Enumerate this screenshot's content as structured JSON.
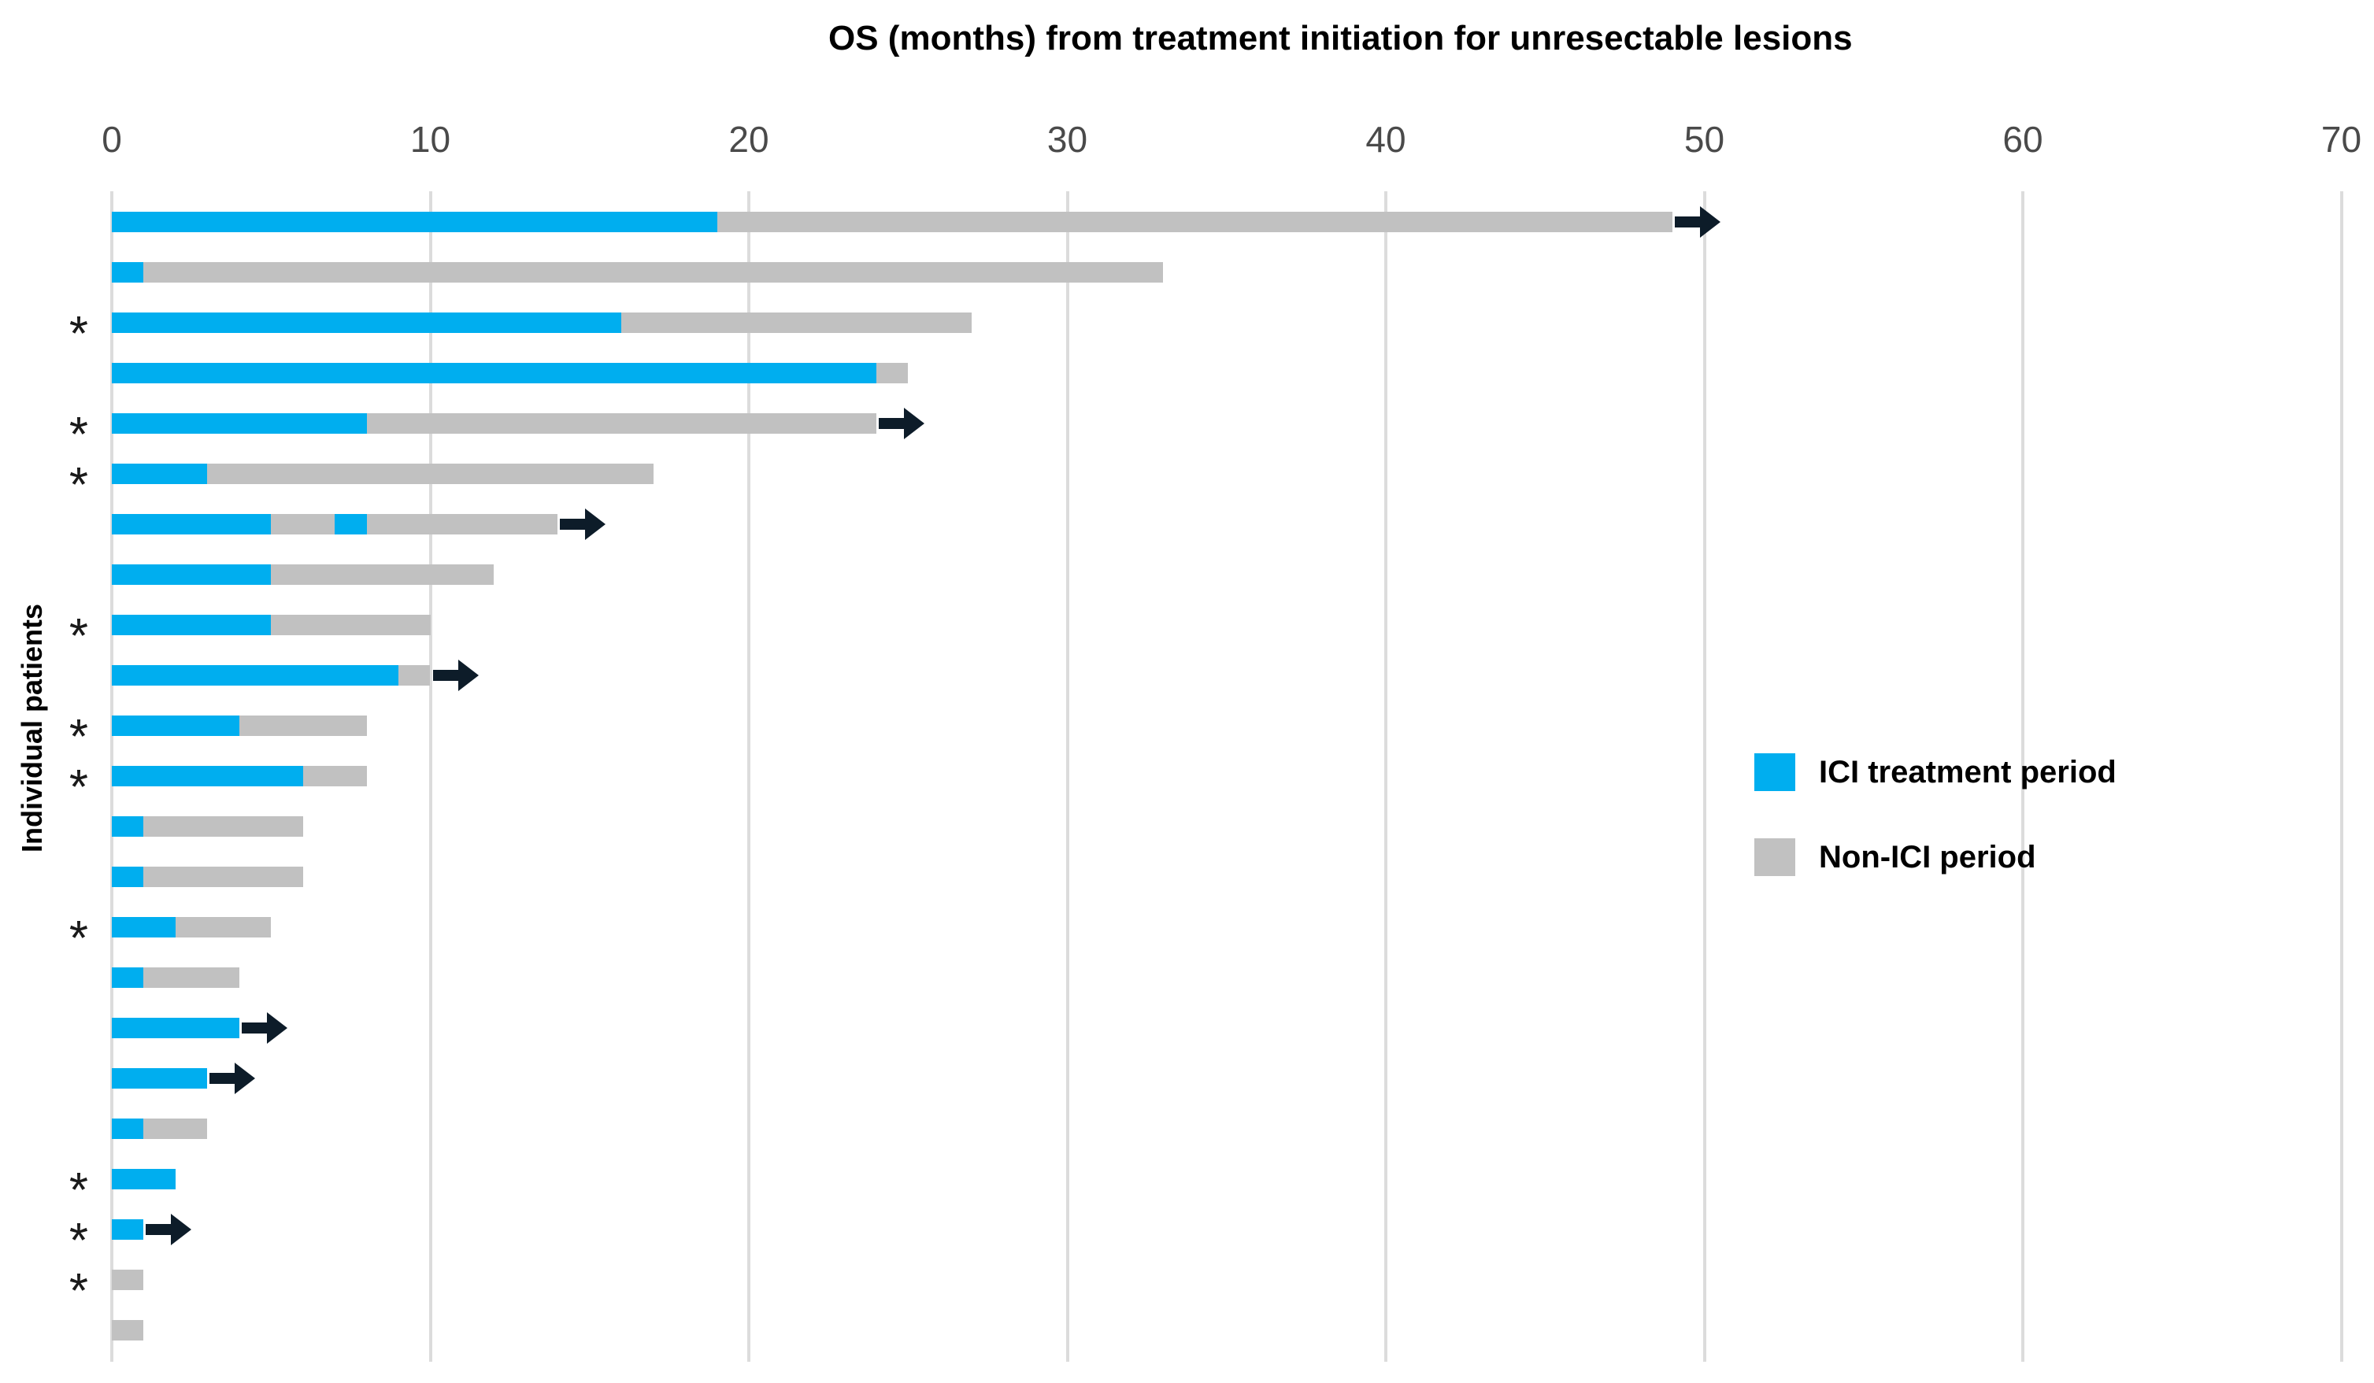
{
  "title": "OS (months) from treatment initiation for unresectable lesions",
  "y_axis_label": "Individual patients",
  "x_axis": {
    "tick_labels": [
      "0",
      "10",
      "20",
      "30",
      "40",
      "50",
      "60",
      "70"
    ]
  },
  "legend": {
    "items": [
      {
        "label": "ICI treatment period",
        "color": "#00aeef"
      },
      {
        "label": "Non-ICI period",
        "color": "#c1c1c1"
      }
    ]
  },
  "colors": {
    "ici": "#00aeef",
    "non_ici": "#c1c1c1",
    "arrow": "#0d1c29",
    "gridline": "#dcdcdc",
    "tick_text": "#4a4a4a"
  },
  "chart_data": {
    "type": "bar",
    "subtype": "swimmer-plot",
    "orientation": "horizontal",
    "title": "OS (months) from treatment initiation for unresectable lesions",
    "ylabel": "Individual patients",
    "xlim": [
      0,
      70
    ],
    "xticks": [
      0,
      10,
      20,
      30,
      40,
      50,
      60,
      70
    ],
    "grid": true,
    "legend_position": "right",
    "series_names": [
      "ICI treatment period",
      "Non-ICI period"
    ],
    "patients": [
      {
        "asterisk": false,
        "arrow": true,
        "segments": [
          {
            "type": "ici",
            "from": 0,
            "to": 19
          },
          {
            "type": "non_ici",
            "from": 19,
            "to": 49
          }
        ]
      },
      {
        "asterisk": false,
        "arrow": false,
        "segments": [
          {
            "type": "ici",
            "from": 0,
            "to": 1
          },
          {
            "type": "non_ici",
            "from": 1,
            "to": 33
          }
        ]
      },
      {
        "asterisk": true,
        "arrow": false,
        "segments": [
          {
            "type": "ici",
            "from": 0,
            "to": 16
          },
          {
            "type": "non_ici",
            "from": 16,
            "to": 27
          }
        ]
      },
      {
        "asterisk": false,
        "arrow": false,
        "segments": [
          {
            "type": "ici",
            "from": 0,
            "to": 24
          },
          {
            "type": "non_ici",
            "from": 24,
            "to": 25
          }
        ]
      },
      {
        "asterisk": true,
        "arrow": true,
        "segments": [
          {
            "type": "ici",
            "from": 0,
            "to": 8
          },
          {
            "type": "non_ici",
            "from": 8,
            "to": 24
          }
        ]
      },
      {
        "asterisk": true,
        "arrow": false,
        "segments": [
          {
            "type": "ici",
            "from": 0,
            "to": 3
          },
          {
            "type": "non_ici",
            "from": 3,
            "to": 17
          }
        ]
      },
      {
        "asterisk": false,
        "arrow": true,
        "segments": [
          {
            "type": "ici",
            "from": 0,
            "to": 5
          },
          {
            "type": "non_ici",
            "from": 5,
            "to": 7
          },
          {
            "type": "ici",
            "from": 7,
            "to": 8
          },
          {
            "type": "non_ici",
            "from": 8,
            "to": 14
          }
        ]
      },
      {
        "asterisk": false,
        "arrow": false,
        "segments": [
          {
            "type": "ici",
            "from": 0,
            "to": 5
          },
          {
            "type": "non_ici",
            "from": 5,
            "to": 12
          }
        ]
      },
      {
        "asterisk": true,
        "arrow": false,
        "segments": [
          {
            "type": "ici",
            "from": 0,
            "to": 5
          },
          {
            "type": "non_ici",
            "from": 5,
            "to": 10
          }
        ]
      },
      {
        "asterisk": false,
        "arrow": true,
        "segments": [
          {
            "type": "ici",
            "from": 0,
            "to": 9
          },
          {
            "type": "non_ici",
            "from": 9,
            "to": 10
          }
        ]
      },
      {
        "asterisk": true,
        "arrow": false,
        "segments": [
          {
            "type": "ici",
            "from": 0,
            "to": 4
          },
          {
            "type": "non_ici",
            "from": 4,
            "to": 8
          }
        ]
      },
      {
        "asterisk": true,
        "arrow": false,
        "segments": [
          {
            "type": "ici",
            "from": 0,
            "to": 6
          },
          {
            "type": "non_ici",
            "from": 6,
            "to": 8
          }
        ]
      },
      {
        "asterisk": false,
        "arrow": false,
        "segments": [
          {
            "type": "ici",
            "from": 0,
            "to": 1
          },
          {
            "type": "non_ici",
            "from": 1,
            "to": 6
          }
        ]
      },
      {
        "asterisk": false,
        "arrow": false,
        "segments": [
          {
            "type": "ici",
            "from": 0,
            "to": 1
          },
          {
            "type": "non_ici",
            "from": 1,
            "to": 6
          }
        ]
      },
      {
        "asterisk": true,
        "arrow": false,
        "segments": [
          {
            "type": "ici",
            "from": 0,
            "to": 2
          },
          {
            "type": "non_ici",
            "from": 2,
            "to": 5
          }
        ]
      },
      {
        "asterisk": false,
        "arrow": false,
        "segments": [
          {
            "type": "ici",
            "from": 0,
            "to": 1
          },
          {
            "type": "non_ici",
            "from": 1,
            "to": 4
          }
        ]
      },
      {
        "asterisk": false,
        "arrow": true,
        "segments": [
          {
            "type": "ici",
            "from": 0,
            "to": 4
          }
        ]
      },
      {
        "asterisk": false,
        "arrow": true,
        "segments": [
          {
            "type": "ici",
            "from": 0,
            "to": 3
          }
        ]
      },
      {
        "asterisk": false,
        "arrow": false,
        "segments": [
          {
            "type": "ici",
            "from": 0,
            "to": 1
          },
          {
            "type": "non_ici",
            "from": 1,
            "to": 3
          }
        ]
      },
      {
        "asterisk": true,
        "arrow": false,
        "segments": [
          {
            "type": "ici",
            "from": 0,
            "to": 2
          }
        ]
      },
      {
        "asterisk": true,
        "arrow": true,
        "segments": [
          {
            "type": "ici",
            "from": 0,
            "to": 1
          }
        ]
      },
      {
        "asterisk": true,
        "arrow": false,
        "segments": [
          {
            "type": "non_ici",
            "from": 0,
            "to": 1
          }
        ]
      },
      {
        "asterisk": false,
        "arrow": false,
        "segments": [
          {
            "type": "non_ici",
            "from": 0,
            "to": 1
          }
        ]
      }
    ]
  }
}
